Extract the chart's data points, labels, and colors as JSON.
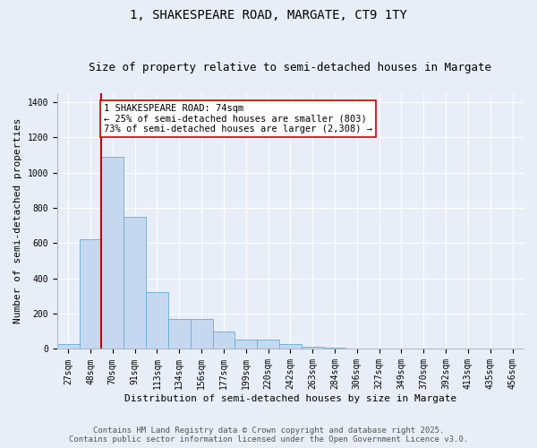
{
  "title1": "1, SHAKESPEARE ROAD, MARGATE, CT9 1TY",
  "title2": "Size of property relative to semi-detached houses in Margate",
  "xlabel": "Distribution of semi-detached houses by size in Margate",
  "ylabel": "Number of semi-detached properties",
  "bin_labels": [
    "27sqm",
    "48sqm",
    "70sqm",
    "91sqm",
    "113sqm",
    "134sqm",
    "156sqm",
    "177sqm",
    "199sqm",
    "220sqm",
    "242sqm",
    "263sqm",
    "284sqm",
    "306sqm",
    "327sqm",
    "349sqm",
    "370sqm",
    "392sqm",
    "413sqm",
    "435sqm",
    "456sqm"
  ],
  "bin_values": [
    30,
    620,
    1090,
    750,
    320,
    170,
    170,
    100,
    55,
    55,
    30,
    15,
    10,
    0,
    0,
    0,
    0,
    0,
    0,
    0,
    0
  ],
  "bar_color": "#c5d8f0",
  "bar_edge_color": "#6aabd2",
  "bar_width": 1.0,
  "vline_x_bin": 2,
  "vline_color": "#cc0000",
  "annotation_text": "1 SHAKESPEARE ROAD: 74sqm\n← 25% of semi-detached houses are smaller (803)\n73% of semi-detached houses are larger (2,308) →",
  "annotation_box_facecolor": "#ffffff",
  "annotation_box_edgecolor": "#cc0000",
  "ylim_max": 1450,
  "yticks": [
    0,
    200,
    400,
    600,
    800,
    1000,
    1200,
    1400
  ],
  "footer1": "Contains HM Land Registry data © Crown copyright and database right 2025.",
  "footer2": "Contains public sector information licensed under the Open Government Licence v3.0.",
  "fig_bg": "#e8eef8",
  "plot_bg": "#e8eef8",
  "grid_color": "#ffffff",
  "title1_fontsize": 10,
  "title2_fontsize": 9,
  "xlabel_fontsize": 8,
  "ylabel_fontsize": 8,
  "tick_fontsize": 7,
  "annot_fontsize": 7.5,
  "footer_fontsize": 6.5
}
